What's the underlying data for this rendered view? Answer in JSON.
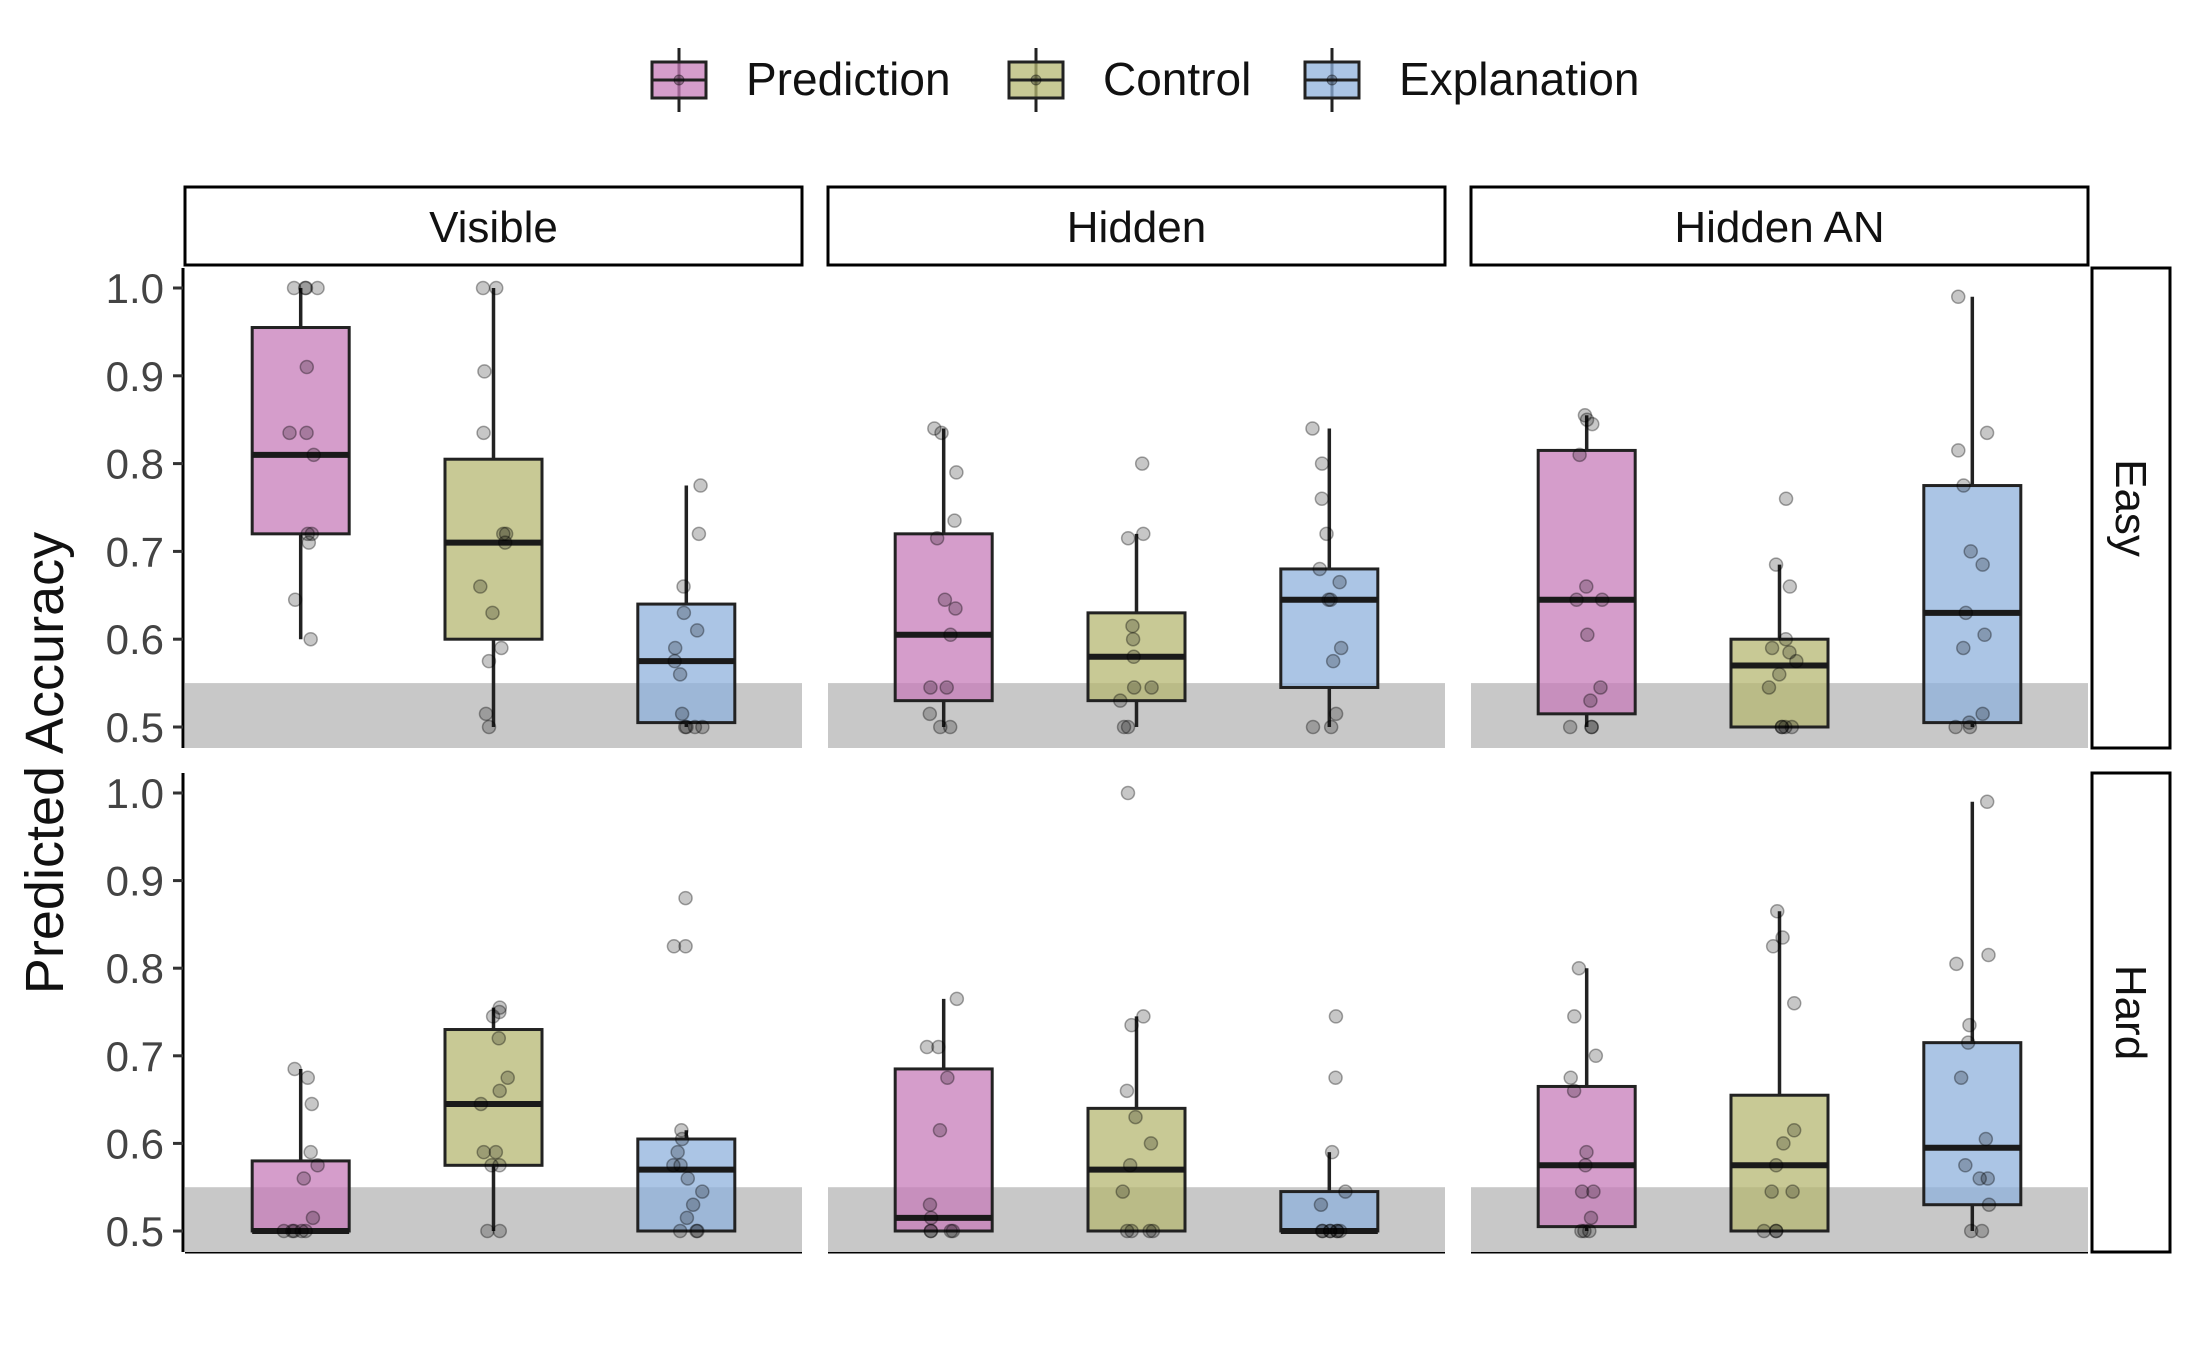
{
  "chart_data": {
    "type": "box",
    "ylabel": "Predicted Accuracy",
    "ylim": [
      0.5,
      1.0
    ],
    "yticks": [
      "0.5",
      "0.6",
      "0.7",
      "0.8",
      "0.9",
      "1.0"
    ],
    "legend": {
      "position": "top",
      "items": [
        "Prediction",
        "Control",
        "Explanation"
      ]
    },
    "colors": {
      "Prediction": "#c77cba",
      "Control": "#b5b771",
      "Explanation": "#8fb2dc",
      "chance_band": "#c8c8c8"
    },
    "chance_band": [
      0.5,
      0.55
    ],
    "column_facets": [
      "Visible",
      "Hidden",
      "Hidden AN"
    ],
    "row_facets": [
      "Easy",
      "Hard"
    ],
    "panels": [
      {
        "row": "Easy",
        "col": "Visible",
        "boxes": [
          {
            "group": "Prediction",
            "whisker_low": 0.6,
            "q1": 0.72,
            "median": 0.81,
            "q3": 0.955,
            "whisker_high": 1.0,
            "points": [
              1.0,
              1.0,
              1.0,
              1.0,
              0.91,
              0.835,
              0.835,
              0.81,
              0.72,
              0.72,
              0.71,
              0.645,
              0.6
            ],
            "outliers": []
          },
          {
            "group": "Control",
            "whisker_low": 0.5,
            "q1": 0.6,
            "median": 0.71,
            "q3": 0.805,
            "whisker_high": 1.0,
            "points": [
              1.0,
              1.0,
              0.905,
              0.835,
              0.72,
              0.72,
              0.71,
              0.66,
              0.63,
              0.59,
              0.575,
              0.515,
              0.5
            ],
            "outliers": []
          },
          {
            "group": "Explanation",
            "whisker_low": 0.5,
            "q1": 0.505,
            "median": 0.575,
            "q3": 0.64,
            "whisker_high": 0.775,
            "points": [
              0.775,
              0.72,
              0.66,
              0.63,
              0.61,
              0.59,
              0.575,
              0.56,
              0.515,
              0.5,
              0.5,
              0.5,
              0.5
            ],
            "outliers": []
          }
        ]
      },
      {
        "row": "Easy",
        "col": "Hidden",
        "boxes": [
          {
            "group": "Prediction",
            "whisker_low": 0.5,
            "q1": 0.53,
            "median": 0.605,
            "q3": 0.72,
            "whisker_high": 0.84,
            "points": [
              0.84,
              0.835,
              0.79,
              0.735,
              0.715,
              0.645,
              0.635,
              0.605,
              0.545,
              0.545,
              0.515,
              0.5,
              0.5
            ],
            "outliers": []
          },
          {
            "group": "Control",
            "whisker_low": 0.5,
            "q1": 0.53,
            "median": 0.58,
            "q3": 0.63,
            "whisker_high": 0.72,
            "points": [
              0.72,
              0.715,
              0.615,
              0.6,
              0.58,
              0.545,
              0.545,
              0.53,
              0.5,
              0.5
            ],
            "outliers": [
              0.8
            ]
          },
          {
            "group": "Explanation",
            "whisker_low": 0.5,
            "q1": 0.545,
            "median": 0.645,
            "q3": 0.68,
            "whisker_high": 0.84,
            "points": [
              0.84,
              0.8,
              0.76,
              0.72,
              0.68,
              0.665,
              0.645,
              0.645,
              0.59,
              0.575,
              0.515,
              0.5,
              0.5
            ],
            "outliers": []
          }
        ]
      },
      {
        "row": "Easy",
        "col": "Hidden AN",
        "boxes": [
          {
            "group": "Prediction",
            "whisker_low": 0.5,
            "q1": 0.515,
            "median": 0.645,
            "q3": 0.815,
            "whisker_high": 0.855,
            "points": [
              0.855,
              0.85,
              0.845,
              0.81,
              0.66,
              0.645,
              0.645,
              0.605,
              0.545,
              0.53,
              0.5,
              0.5,
              0.5
            ],
            "outliers": []
          },
          {
            "group": "Control",
            "whisker_low": 0.5,
            "q1": 0.5,
            "median": 0.57,
            "q3": 0.6,
            "whisker_high": 0.685,
            "points": [
              0.685,
              0.66,
              0.6,
              0.59,
              0.585,
              0.575,
              0.56,
              0.545,
              0.5,
              0.5,
              0.5,
              0.5
            ],
            "outliers": [
              0.76
            ]
          },
          {
            "group": "Explanation",
            "whisker_low": 0.5,
            "q1": 0.505,
            "median": 0.63,
            "q3": 0.775,
            "whisker_high": 0.99,
            "points": [
              0.99,
              0.835,
              0.815,
              0.775,
              0.7,
              0.685,
              0.63,
              0.605,
              0.59,
              0.515,
              0.505,
              0.5,
              0.5
            ],
            "outliers": []
          }
        ]
      },
      {
        "row": "Hard",
        "col": "Visible",
        "boxes": [
          {
            "group": "Prediction",
            "whisker_low": 0.5,
            "q1": 0.5,
            "median": 0.5,
            "q3": 0.58,
            "whisker_high": 0.685,
            "points": [
              0.685,
              0.675,
              0.645,
              0.59,
              0.575,
              0.56,
              0.515,
              0.5,
              0.5,
              0.5,
              0.5,
              0.5
            ],
            "outliers": []
          },
          {
            "group": "Control",
            "whisker_low": 0.5,
            "q1": 0.575,
            "median": 0.645,
            "q3": 0.73,
            "whisker_high": 0.755,
            "points": [
              0.755,
              0.75,
              0.745,
              0.72,
              0.675,
              0.66,
              0.645,
              0.59,
              0.59,
              0.575,
              0.575,
              0.5,
              0.5
            ],
            "outliers": []
          },
          {
            "group": "Explanation",
            "whisker_low": 0.5,
            "q1": 0.5,
            "median": 0.57,
            "q3": 0.605,
            "whisker_high": 0.615,
            "points": [
              0.615,
              0.605,
              0.59,
              0.575,
              0.575,
              0.56,
              0.545,
              0.53,
              0.515,
              0.5,
              0.5,
              0.5
            ],
            "outliers": [
              0.88,
              0.825,
              0.825
            ]
          }
        ]
      },
      {
        "row": "Hard",
        "col": "Hidden",
        "boxes": [
          {
            "group": "Prediction",
            "whisker_low": 0.5,
            "q1": 0.5,
            "median": 0.515,
            "q3": 0.685,
            "whisker_high": 0.765,
            "points": [
              0.765,
              0.71,
              0.71,
              0.675,
              0.615,
              0.53,
              0.515,
              0.5,
              0.5,
              0.5,
              0.5
            ],
            "outliers": []
          },
          {
            "group": "Control",
            "whisker_low": 0.5,
            "q1": 0.5,
            "median": 0.57,
            "q3": 0.64,
            "whisker_high": 0.745,
            "points": [
              0.745,
              0.735,
              0.66,
              0.63,
              0.6,
              0.575,
              0.545,
              0.5,
              0.5,
              0.5,
              0.5
            ],
            "outliers": [
              1.0
            ]
          },
          {
            "group": "Explanation",
            "whisker_low": 0.5,
            "q1": 0.5,
            "median": 0.5,
            "q3": 0.545,
            "whisker_high": 0.59,
            "points": [
              0.59,
              0.545,
              0.53,
              0.5,
              0.5,
              0.5,
              0.5,
              0.5,
              0.5,
              0.5
            ],
            "outliers": [
              0.745,
              0.675
            ]
          }
        ]
      },
      {
        "row": "Hard",
        "col": "Hidden AN",
        "boxes": [
          {
            "group": "Prediction",
            "whisker_low": 0.5,
            "q1": 0.505,
            "median": 0.575,
            "q3": 0.665,
            "whisker_high": 0.8,
            "points": [
              0.8,
              0.745,
              0.7,
              0.675,
              0.66,
              0.59,
              0.575,
              0.545,
              0.545,
              0.515,
              0.5,
              0.5,
              0.5
            ],
            "outliers": []
          },
          {
            "group": "Control",
            "whisker_low": 0.5,
            "q1": 0.5,
            "median": 0.575,
            "q3": 0.655,
            "whisker_high": 0.865,
            "points": [
              0.865,
              0.835,
              0.825,
              0.76,
              0.615,
              0.6,
              0.575,
              0.545,
              0.545,
              0.5,
              0.5,
              0.5
            ],
            "outliers": []
          },
          {
            "group": "Explanation",
            "whisker_low": 0.5,
            "q1": 0.53,
            "median": 0.595,
            "q3": 0.715,
            "whisker_high": 0.99,
            "points": [
              0.99,
              0.815,
              0.805,
              0.735,
              0.715,
              0.675,
              0.605,
              0.575,
              0.56,
              0.56,
              0.53,
              0.5,
              0.5
            ],
            "outliers": []
          }
        ]
      }
    ]
  }
}
